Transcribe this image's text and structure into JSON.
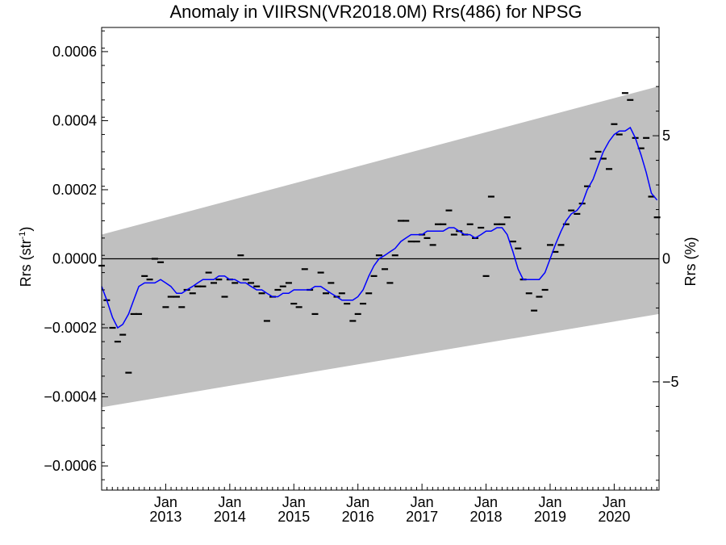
{
  "chart_data": {
    "type": "line",
    "title": "Anomaly in VIIRSN(VR2018.0M) Rrs(486) for NPSG",
    "ylabel_left": "Rrs (str",
    "ylabel_left_sup": "-1",
    "ylabel_left_end": ")",
    "ylabel_right": "Rrs (%)",
    "xlim": [
      2012.0,
      2020.7
    ],
    "ylim": [
      -0.00067,
      0.00067
    ],
    "y2lim": [
      -9.4,
      9.4
    ],
    "grid": false,
    "x_ticks": [
      {
        "x": 2013.0,
        "top": "Jan",
        "bottom": "2013"
      },
      {
        "x": 2014.0,
        "top": "Jan",
        "bottom": "2014"
      },
      {
        "x": 2015.0,
        "top": "Jan",
        "bottom": "2015"
      },
      {
        "x": 2016.0,
        "top": "Jan",
        "bottom": "2016"
      },
      {
        "x": 2017.0,
        "top": "Jan",
        "bottom": "2017"
      },
      {
        "x": 2018.0,
        "top": "Jan",
        "bottom": "2018"
      },
      {
        "x": 2019.0,
        "top": "Jan",
        "bottom": "2019"
      },
      {
        "x": 2020.0,
        "top": "Jan",
        "bottom": "2020"
      }
    ],
    "y_ticks": [
      {
        "v": 0.0006,
        "label": "0.0006"
      },
      {
        "v": 0.0004,
        "label": "0.0004"
      },
      {
        "v": 0.0002,
        "label": "0.0002"
      },
      {
        "v": 0.0,
        "label": "0.0000"
      },
      {
        "v": -0.0002,
        "label": "−0.0002"
      },
      {
        "v": -0.0004,
        "label": "−0.0004"
      },
      {
        "v": -0.0006,
        "label": "−0.0006"
      }
    ],
    "y2_ticks": [
      {
        "v": 5,
        "label": "5"
      },
      {
        "v": 0,
        "label": "0"
      },
      {
        "v": -5,
        "label": "−5"
      }
    ],
    "band": {
      "color": "#c0c0c0",
      "start": {
        "x": 2012.0,
        "lower": -0.00043,
        "upper": 7e-05
      },
      "end": {
        "x": 2020.7,
        "lower": -0.00016,
        "upper": 0.0005
      }
    },
    "zero_line": 0,
    "series": [
      {
        "kind": "marker",
        "color": "#000000",
        "points": [
          [
            2012.0,
            -2e-05
          ],
          [
            2012.08,
            -0.00012
          ],
          [
            2012.17,
            -0.0002
          ],
          [
            2012.25,
            -0.00024
          ],
          [
            2012.33,
            -0.00022
          ],
          [
            2012.42,
            -0.00033
          ],
          [
            2012.5,
            -0.00016
          ],
          [
            2012.58,
            -0.00016
          ],
          [
            2012.67,
            -5e-05
          ],
          [
            2012.75,
            -6e-05
          ],
          [
            2012.83,
            0.0
          ],
          [
            2012.92,
            -1e-05
          ],
          [
            2013.0,
            -0.00014
          ],
          [
            2013.08,
            -0.00011
          ],
          [
            2013.17,
            -0.00011
          ],
          [
            2013.25,
            -0.00014
          ],
          [
            2013.33,
            -9e-05
          ],
          [
            2013.42,
            -0.0001
          ],
          [
            2013.5,
            -8e-05
          ],
          [
            2013.58,
            -8e-05
          ],
          [
            2013.67,
            -4e-05
          ],
          [
            2013.75,
            -7e-05
          ],
          [
            2013.83,
            -6e-05
          ],
          [
            2013.92,
            -0.00011
          ],
          [
            2014.0,
            -6e-05
          ],
          [
            2014.08,
            -7e-05
          ],
          [
            2014.17,
            1e-05
          ],
          [
            2014.25,
            -6e-05
          ],
          [
            2014.33,
            -7e-05
          ],
          [
            2014.42,
            -8e-05
          ],
          [
            2014.5,
            -0.0001
          ],
          [
            2014.58,
            -0.00018
          ],
          [
            2014.67,
            -0.00011
          ],
          [
            2014.75,
            -9e-05
          ],
          [
            2014.83,
            -8e-05
          ],
          [
            2014.92,
            -7e-05
          ],
          [
            2015.0,
            -0.00013
          ],
          [
            2015.08,
            -0.00014
          ],
          [
            2015.17,
            -3e-05
          ],
          [
            2015.25,
            -9e-05
          ],
          [
            2015.33,
            -0.00016
          ],
          [
            2015.42,
            -4e-05
          ],
          [
            2015.5,
            -0.0001
          ],
          [
            2015.58,
            -7e-05
          ],
          [
            2015.67,
            -0.00011
          ],
          [
            2015.75,
            -0.0001
          ],
          [
            2015.83,
            -0.00013
          ],
          [
            2015.92,
            -0.00018
          ],
          [
            2016.0,
            -0.00016
          ],
          [
            2016.08,
            -0.00013
          ],
          [
            2016.17,
            -0.0001
          ],
          [
            2016.25,
            -5e-05
          ],
          [
            2016.33,
            1e-05
          ],
          [
            2016.42,
            -3e-05
          ],
          [
            2016.5,
            -7e-05
          ],
          [
            2016.58,
            1e-05
          ],
          [
            2016.67,
            0.00011
          ],
          [
            2016.75,
            0.00011
          ],
          [
            2016.83,
            5e-05
          ],
          [
            2016.92,
            5e-05
          ],
          [
            2017.0,
            7e-05
          ],
          [
            2017.08,
            6e-05
          ],
          [
            2017.17,
            4e-05
          ],
          [
            2017.25,
            0.0001
          ],
          [
            2017.33,
            0.0001
          ],
          [
            2017.42,
            0.00014
          ],
          [
            2017.5,
            7e-05
          ],
          [
            2017.58,
            8e-05
          ],
          [
            2017.67,
            7e-05
          ],
          [
            2017.75,
            0.0001
          ],
          [
            2017.83,
            6e-05
          ],
          [
            2017.92,
            9e-05
          ],
          [
            2018.0,
            -5e-05
          ],
          [
            2018.08,
            0.00018
          ],
          [
            2018.17,
            0.0001
          ],
          [
            2018.25,
            0.0001
          ],
          [
            2018.33,
            0.00012
          ],
          [
            2018.42,
            5e-05
          ],
          [
            2018.5,
            3e-05
          ],
          [
            2018.58,
            -6e-05
          ],
          [
            2018.67,
            -0.0001
          ],
          [
            2018.75,
            -0.00015
          ],
          [
            2018.83,
            -0.00011
          ],
          [
            2018.92,
            -9e-05
          ],
          [
            2019.0,
            4e-05
          ],
          [
            2019.08,
            2e-05
          ],
          [
            2019.17,
            4e-05
          ],
          [
            2019.25,
            0.0001
          ],
          [
            2019.33,
            0.00014
          ],
          [
            2019.42,
            0.00013
          ],
          [
            2019.5,
            0.00016
          ],
          [
            2019.58,
            0.00021
          ],
          [
            2019.67,
            0.00029
          ],
          [
            2019.75,
            0.00031
          ],
          [
            2019.83,
            0.00029
          ],
          [
            2019.92,
            0.00026
          ],
          [
            2020.0,
            0.00039
          ],
          [
            2020.08,
            0.00036
          ],
          [
            2020.17,
            0.00048
          ],
          [
            2020.25,
            0.00046
          ],
          [
            2020.33,
            0.00035
          ],
          [
            2020.42,
            0.00032
          ],
          [
            2020.5,
            0.00035
          ],
          [
            2020.58,
            0.00018
          ],
          [
            2020.67,
            0.00012
          ]
        ]
      },
      {
        "kind": "line",
        "color": "#0000ff",
        "points": [
          [
            2012.0,
            -8e-05
          ],
          [
            2012.08,
            -0.00012
          ],
          [
            2012.17,
            -0.00017
          ],
          [
            2012.25,
            -0.0002
          ],
          [
            2012.33,
            -0.00019
          ],
          [
            2012.42,
            -0.00016
          ],
          [
            2012.5,
            -0.00012
          ],
          [
            2012.58,
            -8e-05
          ],
          [
            2012.67,
            -7e-05
          ],
          [
            2012.75,
            -7e-05
          ],
          [
            2012.83,
            -7e-05
          ],
          [
            2012.92,
            -6e-05
          ],
          [
            2013.0,
            -7e-05
          ],
          [
            2013.08,
            -8e-05
          ],
          [
            2013.17,
            -0.0001
          ],
          [
            2013.25,
            -0.0001
          ],
          [
            2013.33,
            -9e-05
          ],
          [
            2013.42,
            -8e-05
          ],
          [
            2013.5,
            -7e-05
          ],
          [
            2013.58,
            -6e-05
          ],
          [
            2013.67,
            -6e-05
          ],
          [
            2013.75,
            -6e-05
          ],
          [
            2013.83,
            -5e-05
          ],
          [
            2013.92,
            -5e-05
          ],
          [
            2014.0,
            -6e-05
          ],
          [
            2014.08,
            -6e-05
          ],
          [
            2014.17,
            -7e-05
          ],
          [
            2014.25,
            -7e-05
          ],
          [
            2014.33,
            -8e-05
          ],
          [
            2014.42,
            -9e-05
          ],
          [
            2014.5,
            -9e-05
          ],
          [
            2014.58,
            -0.0001
          ],
          [
            2014.67,
            -0.00011
          ],
          [
            2014.75,
            -0.00011
          ],
          [
            2014.83,
            -0.0001
          ],
          [
            2014.92,
            -0.0001
          ],
          [
            2015.0,
            -9e-05
          ],
          [
            2015.08,
            -9e-05
          ],
          [
            2015.17,
            -9e-05
          ],
          [
            2015.25,
            -9e-05
          ],
          [
            2015.33,
            -8e-05
          ],
          [
            2015.42,
            -8e-05
          ],
          [
            2015.5,
            -9e-05
          ],
          [
            2015.58,
            -0.0001
          ],
          [
            2015.67,
            -0.00011
          ],
          [
            2015.75,
            -0.00012
          ],
          [
            2015.83,
            -0.00012
          ],
          [
            2015.92,
            -0.00012
          ],
          [
            2016.0,
            -0.00011
          ],
          [
            2016.08,
            -9e-05
          ],
          [
            2016.17,
            -5e-05
          ],
          [
            2016.25,
            -2e-05
          ],
          [
            2016.33,
            0.0
          ],
          [
            2016.42,
            1e-05
          ],
          [
            2016.5,
            2e-05
          ],
          [
            2016.58,
            3e-05
          ],
          [
            2016.67,
            5e-05
          ],
          [
            2016.75,
            6e-05
          ],
          [
            2016.83,
            7e-05
          ],
          [
            2016.92,
            7e-05
          ],
          [
            2017.0,
            7e-05
          ],
          [
            2017.08,
            8e-05
          ],
          [
            2017.17,
            8e-05
          ],
          [
            2017.25,
            8e-05
          ],
          [
            2017.33,
            8e-05
          ],
          [
            2017.42,
            9e-05
          ],
          [
            2017.5,
            9e-05
          ],
          [
            2017.58,
            8e-05
          ],
          [
            2017.67,
            7e-05
          ],
          [
            2017.75,
            7e-05
          ],
          [
            2017.83,
            6e-05
          ],
          [
            2017.92,
            7e-05
          ],
          [
            2018.0,
            8e-05
          ],
          [
            2018.08,
            8e-05
          ],
          [
            2018.17,
            9e-05
          ],
          [
            2018.25,
            9e-05
          ],
          [
            2018.33,
            7e-05
          ],
          [
            2018.42,
            2e-05
          ],
          [
            2018.5,
            -3e-05
          ],
          [
            2018.58,
            -6e-05
          ],
          [
            2018.67,
            -6e-05
          ],
          [
            2018.75,
            -6e-05
          ],
          [
            2018.83,
            -6e-05
          ],
          [
            2018.92,
            -4e-05
          ],
          [
            2019.0,
            0.0
          ],
          [
            2019.08,
            4e-05
          ],
          [
            2019.17,
            8e-05
          ],
          [
            2019.25,
            0.00011
          ],
          [
            2019.33,
            0.00013
          ],
          [
            2019.42,
            0.00014
          ],
          [
            2019.5,
            0.00016
          ],
          [
            2019.58,
            0.0002
          ],
          [
            2019.67,
            0.00023
          ],
          [
            2019.75,
            0.00027
          ],
          [
            2019.83,
            0.00031
          ],
          [
            2019.92,
            0.00034
          ],
          [
            2020.0,
            0.00036
          ],
          [
            2020.08,
            0.00037
          ],
          [
            2020.17,
            0.00037
          ],
          [
            2020.25,
            0.00038
          ],
          [
            2020.33,
            0.00035
          ],
          [
            2020.42,
            0.0003
          ],
          [
            2020.5,
            0.00025
          ],
          [
            2020.58,
            0.00019
          ],
          [
            2020.67,
            0.00017
          ]
        ]
      }
    ]
  }
}
